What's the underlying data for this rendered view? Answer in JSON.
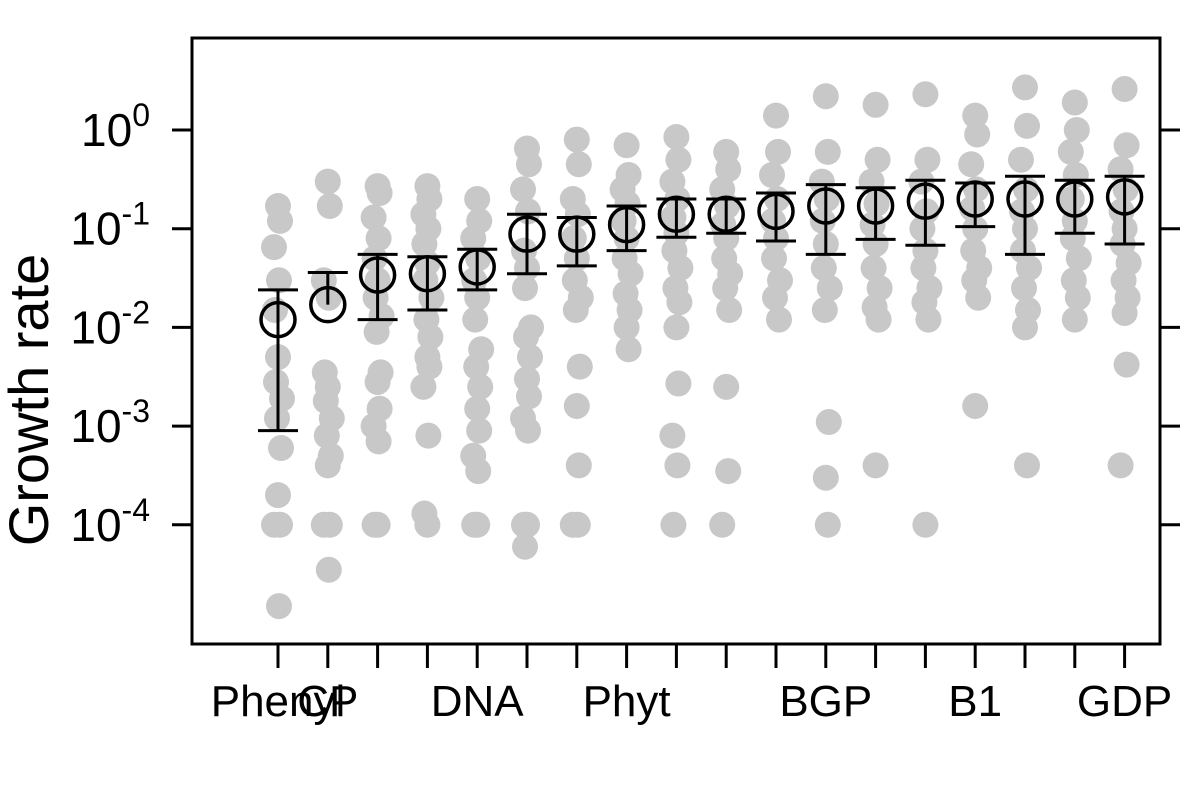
{
  "chart_data": {
    "type": "scatter",
    "ylabel": "Growth rate",
    "yscale": "log",
    "ylim": [
      1e-05,
      8
    ],
    "y_ticks": [
      {
        "value": 1,
        "base": "10",
        "exp": "0"
      },
      {
        "value": 0.1,
        "base": "10",
        "exp": "-1"
      },
      {
        "value": 0.01,
        "base": "10",
        "exp": "-2"
      },
      {
        "value": 0.001,
        "base": "10",
        "exp": "-3"
      },
      {
        "value": 0.0001,
        "base": "10",
        "exp": "-4"
      }
    ],
    "x_tick_labels": [
      {
        "index": 0,
        "label": "Phenyl"
      },
      {
        "index": 1,
        "label": "CP"
      },
      {
        "index": 4,
        "label": "DNA"
      },
      {
        "index": 7,
        "label": "Phyt"
      },
      {
        "index": 11,
        "label": "BGP"
      },
      {
        "index": 14,
        "label": "B1"
      },
      {
        "index": 17,
        "label": "GDP"
      }
    ],
    "colors": {
      "points": "#c8c8c8",
      "summary": "#000000"
    },
    "groups": [
      {
        "mean": 0.012,
        "lower": 0.0009,
        "upper": 0.024,
        "points": [
          0.17,
          0.12,
          0.065,
          0.03,
          0.015,
          0.005,
          0.0028,
          0.0019,
          0.0012,
          0.0006,
          0.0002,
          0.0001,
          0.0001,
          1.5e-05
        ]
      },
      {
        "mean": 0.017,
        "lower": null,
        "upper": 0.036,
        "points": [
          0.3,
          0.17,
          0.03,
          0.02,
          0.0035,
          0.0025,
          0.0018,
          0.0012,
          0.0008,
          0.0005,
          0.0004,
          0.0001,
          0.0001,
          3.5e-05
        ]
      },
      {
        "mean": 0.034,
        "lower": 0.012,
        "upper": 0.055,
        "points": [
          0.27,
          0.23,
          0.13,
          0.08,
          0.05,
          0.03,
          0.02,
          0.013,
          0.009,
          0.0035,
          0.0028,
          0.0015,
          0.001,
          0.0007,
          0.0001,
          0.0001
        ]
      },
      {
        "mean": 0.035,
        "lower": 0.015,
        "upper": 0.052,
        "points": [
          0.27,
          0.2,
          0.14,
          0.1,
          0.07,
          0.045,
          0.03,
          0.02,
          0.012,
          0.008,
          0.005,
          0.004,
          0.0025,
          0.0008,
          0.00013,
          0.0001
        ]
      },
      {
        "mean": 0.041,
        "lower": 0.024,
        "upper": 0.062,
        "points": [
          0.2,
          0.12,
          0.08,
          0.05,
          0.03,
          0.02,
          0.012,
          0.006,
          0.004,
          0.0025,
          0.0015,
          0.0009,
          0.0005,
          0.00035,
          0.0001,
          0.0001
        ]
      },
      {
        "mean": 0.088,
        "lower": 0.035,
        "upper": 0.14,
        "points": [
          0.65,
          0.45,
          0.25,
          0.15,
          0.06,
          0.04,
          0.025,
          0.01,
          0.008,
          0.005,
          0.003,
          0.002,
          0.0012,
          0.0009,
          0.0001,
          0.0001,
          6e-05
        ]
      },
      {
        "mean": 0.088,
        "lower": 0.042,
        "upper": 0.13,
        "points": [
          0.8,
          0.45,
          0.2,
          0.14,
          0.08,
          0.05,
          0.03,
          0.02,
          0.015,
          0.004,
          0.0016,
          0.0004,
          0.0001,
          0.0001
        ]
      },
      {
        "mean": 0.11,
        "lower": 0.06,
        "upper": 0.17,
        "points": [
          0.7,
          0.35,
          0.25,
          0.18,
          0.12,
          0.08,
          0.05,
          0.035,
          0.022,
          0.015,
          0.01,
          0.006
        ]
      },
      {
        "mean": 0.14,
        "lower": 0.082,
        "upper": 0.2,
        "points": [
          0.85,
          0.5,
          0.3,
          0.2,
          0.13,
          0.09,
          0.06,
          0.04,
          0.025,
          0.018,
          0.01,
          0.0027,
          0.0008,
          0.0004,
          0.0001
        ]
      },
      {
        "mean": 0.14,
        "lower": 0.09,
        "upper": 0.2,
        "points": [
          0.6,
          0.4,
          0.25,
          0.17,
          0.11,
          0.08,
          0.05,
          0.035,
          0.025,
          0.015,
          0.0025,
          0.00035,
          0.0001
        ]
      },
      {
        "mean": 0.15,
        "lower": 0.075,
        "upper": 0.23,
        "points": [
          1.4,
          0.6,
          0.35,
          0.2,
          0.12,
          0.08,
          0.05,
          0.03,
          0.02,
          0.012
        ]
      },
      {
        "mean": 0.17,
        "lower": 0.055,
        "upper": 0.28,
        "points": [
          2.2,
          0.6,
          0.3,
          0.2,
          0.12,
          0.07,
          0.04,
          0.025,
          0.015,
          0.0011,
          0.0003,
          0.0001
        ]
      },
      {
        "mean": 0.17,
        "lower": 0.078,
        "upper": 0.26,
        "points": [
          1.8,
          0.5,
          0.3,
          0.18,
          0.11,
          0.07,
          0.04,
          0.025,
          0.016,
          0.012,
          0.0004
        ]
      },
      {
        "mean": 0.19,
        "lower": 0.068,
        "upper": 0.31,
        "points": [
          2.3,
          0.5,
          0.3,
          0.15,
          0.1,
          0.06,
          0.04,
          0.025,
          0.018,
          0.012,
          0.0001
        ]
      },
      {
        "mean": 0.2,
        "lower": 0.105,
        "upper": 0.29,
        "points": [
          1.4,
          0.9,
          0.45,
          0.25,
          0.16,
          0.1,
          0.06,
          0.04,
          0.03,
          0.02,
          0.0016
        ]
      },
      {
        "mean": 0.2,
        "lower": 0.055,
        "upper": 0.34,
        "points": [
          2.7,
          1.1,
          0.5,
          0.25,
          0.15,
          0.1,
          0.06,
          0.04,
          0.025,
          0.015,
          0.01,
          0.0004
        ]
      },
      {
        "mean": 0.2,
        "lower": 0.09,
        "upper": 0.31,
        "points": [
          1.9,
          1.0,
          0.6,
          0.35,
          0.2,
          0.12,
          0.08,
          0.05,
          0.03,
          0.02,
          0.012
        ]
      },
      {
        "mean": 0.21,
        "lower": 0.07,
        "upper": 0.34,
        "points": [
          2.6,
          0.7,
          0.4,
          0.25,
          0.15,
          0.1,
          0.07,
          0.045,
          0.03,
          0.02,
          0.014,
          0.0042,
          0.0004
        ]
      }
    ]
  }
}
